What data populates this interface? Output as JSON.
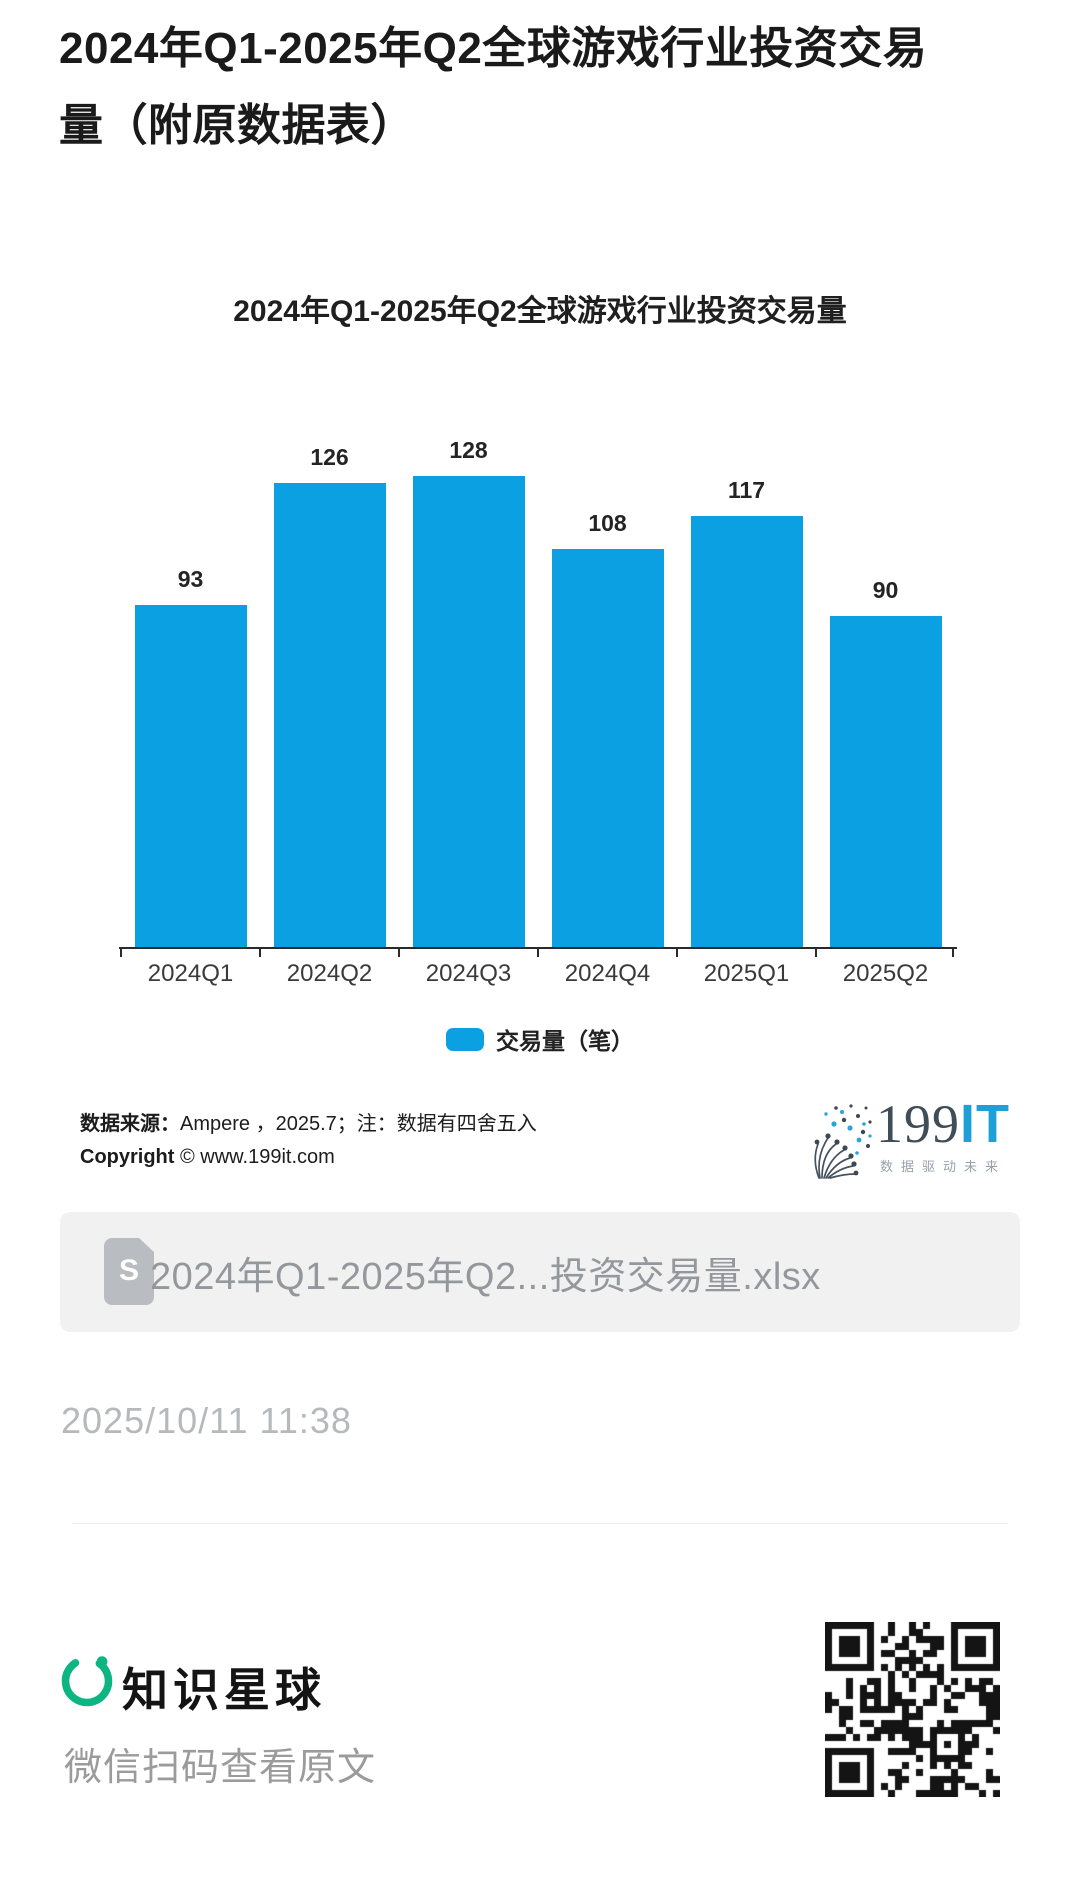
{
  "page": {
    "title": "2024年Q1-2025年Q2全球游戏行业投资交易量（附原数据表）"
  },
  "chart_data": {
    "type": "bar",
    "title": "2024年Q1-2025年Q2全球游戏行业投资交易量",
    "categories": [
      "2024Q1",
      "2024Q2",
      "2024Q3",
      "2024Q4",
      "2025Q1",
      "2025Q2"
    ],
    "values": [
      93,
      126,
      128,
      108,
      117,
      90
    ],
    "series_name": "交易量（笔）",
    "bar_color": "#0aa0e2",
    "value_labels": true,
    "grid": false,
    "y_axis_visible": false,
    "ylim": [
      0,
      140
    ],
    "legend_position": "bottom"
  },
  "legend": {
    "label": "交易量（笔）",
    "swatch_color": "#0aa0e2"
  },
  "source": {
    "line1_label": "数据来源：",
    "line1_text": "Ampere ，2025.7；注：数据有四舍五入",
    "line2_label": "Copyright",
    "line2_text": "© www.199it.com"
  },
  "logo_199it": {
    "number": "199",
    "suffix": "IT",
    "tagline": "数据驱动未来",
    "number_color": "#3f4d59",
    "suffix_color": "#1e9fd6"
  },
  "attachment": {
    "filename": "2024年Q1-2025年Q2...投资交易量.xlsx",
    "icon_letter": "S"
  },
  "timestamp": "2025/10/11 11:38",
  "footer": {
    "brand": "知识星球",
    "caption": "微信扫码查看原文",
    "brand_color": "#0cb582"
  }
}
